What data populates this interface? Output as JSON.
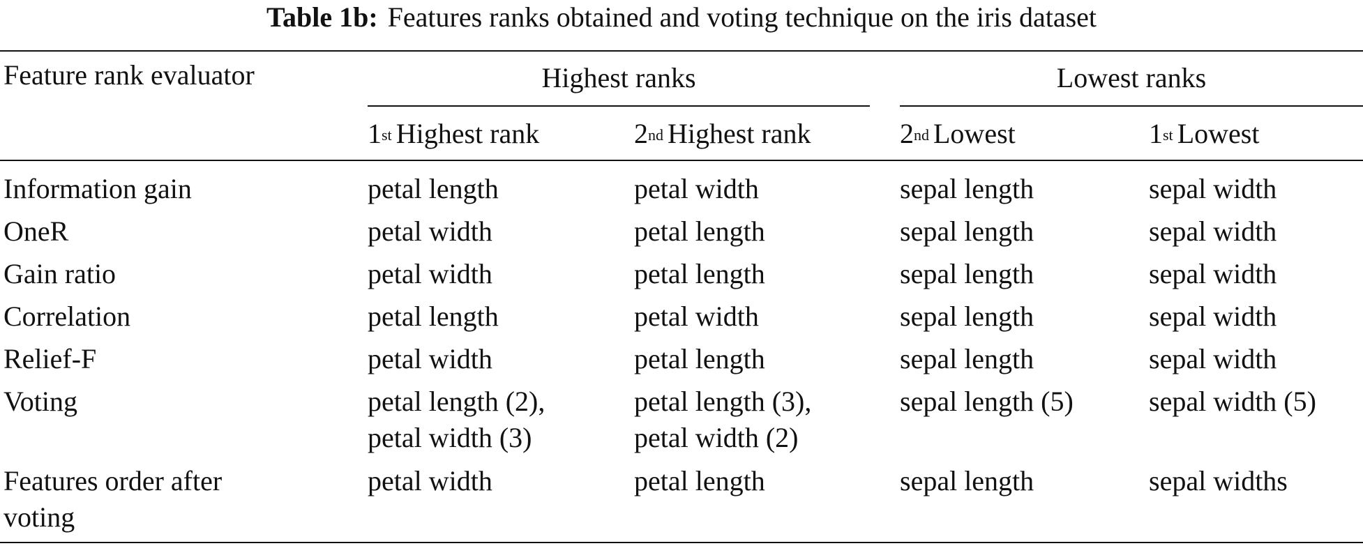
{
  "caption": {
    "label": "Table 1b:",
    "text": "Features ranks obtained and voting technique on the iris dataset"
  },
  "table": {
    "row_header_label": "Feature rank evaluator",
    "groups": [
      {
        "label": "Highest ranks"
      },
      {
        "label": "Lowest ranks"
      }
    ],
    "columns": [
      {
        "num": "1",
        "suffix": "st",
        "label": "Highest rank"
      },
      {
        "num": "2",
        "suffix": "nd",
        "label": "Highest rank"
      },
      {
        "num": "2",
        "suffix": "nd",
        "label": "Lowest"
      },
      {
        "num": "1",
        "suffix": "st",
        "label": "Lowest"
      }
    ],
    "rows": [
      {
        "evaluator": [
          "Information gain"
        ],
        "cells": [
          [
            "petal length"
          ],
          [
            "petal width"
          ],
          [
            "sepal length"
          ],
          [
            "sepal width"
          ]
        ]
      },
      {
        "evaluator": [
          "OneR"
        ],
        "cells": [
          [
            "petal width"
          ],
          [
            "petal length"
          ],
          [
            "sepal length"
          ],
          [
            "sepal width"
          ]
        ]
      },
      {
        "evaluator": [
          "Gain ratio"
        ],
        "cells": [
          [
            "petal width"
          ],
          [
            "petal length"
          ],
          [
            "sepal length"
          ],
          [
            "sepal width"
          ]
        ]
      },
      {
        "evaluator": [
          "Correlation"
        ],
        "cells": [
          [
            "petal length"
          ],
          [
            "petal width"
          ],
          [
            "sepal length"
          ],
          [
            "sepal width"
          ]
        ]
      },
      {
        "evaluator": [
          "Relief-F"
        ],
        "cells": [
          [
            "petal width"
          ],
          [
            "petal length"
          ],
          [
            "sepal length"
          ],
          [
            "sepal width"
          ]
        ]
      },
      {
        "evaluator": [
          "Voting"
        ],
        "cells": [
          [
            "petal length (2),",
            "petal width (3)"
          ],
          [
            "petal length (3),",
            "petal width (2)"
          ],
          [
            "sepal length (5)"
          ],
          [
            "sepal width (5)"
          ]
        ]
      },
      {
        "evaluator": [
          "Features order after",
          "voting"
        ],
        "cells": [
          [
            "petal width"
          ],
          [
            "petal length"
          ],
          [
            "sepal length"
          ],
          [
            "sepal widths"
          ]
        ]
      }
    ]
  }
}
